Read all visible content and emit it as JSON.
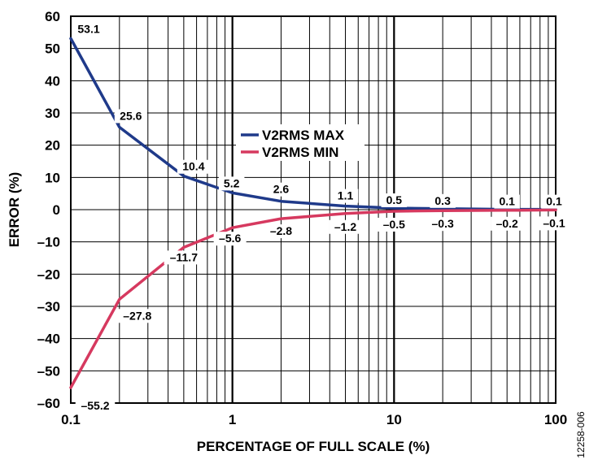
{
  "chart_data": {
    "type": "line",
    "xlabel": "PERCENTAGE OF FULL SCALE (%)",
    "ylabel": "ERROR (%)",
    "xscale": "log",
    "xlim": [
      0.1,
      100
    ],
    "ylim": [
      -60,
      60
    ],
    "xticks": [
      "0.1",
      "1",
      "10",
      "100"
    ],
    "yticks": [
      "60",
      "50",
      "40",
      "30",
      "20",
      "10",
      "0",
      "–10",
      "–20",
      "–30",
      "–40",
      "–50",
      "–60"
    ],
    "grid": true,
    "legend": "center",
    "series": [
      {
        "name": "V2RMS MAX",
        "color": "#1f3a8a",
        "x": [
          0.1,
          0.2,
          0.5,
          1,
          2,
          5,
          10,
          20,
          50,
          100
        ],
        "y": [
          53.1,
          25.6,
          10.4,
          5.2,
          2.6,
          1.1,
          0.5,
          0.3,
          0.1,
          0.1
        ],
        "labels": [
          "53.1",
          "25.6",
          "10.4",
          "5.2",
          "2.6",
          "1.1",
          "0.5",
          "0.3",
          "0.1",
          "0.1"
        ]
      },
      {
        "name": "V2RMS MIN",
        "color": "#d6395f",
        "x": [
          0.1,
          0.2,
          0.5,
          1,
          2,
          5,
          10,
          20,
          50,
          100
        ],
        "y": [
          -55.2,
          -27.8,
          -11.7,
          -5.6,
          -2.8,
          -1.2,
          -0.5,
          -0.3,
          -0.2,
          -0.1
        ],
        "labels": [
          "–55.2",
          "–27.8",
          "–11.7",
          "–5.6",
          "–2.8",
          "–1.2",
          "–0.5",
          "–0.3",
          "–0.2",
          "–0.1"
        ]
      }
    ]
  },
  "figure_id": "12258-006"
}
